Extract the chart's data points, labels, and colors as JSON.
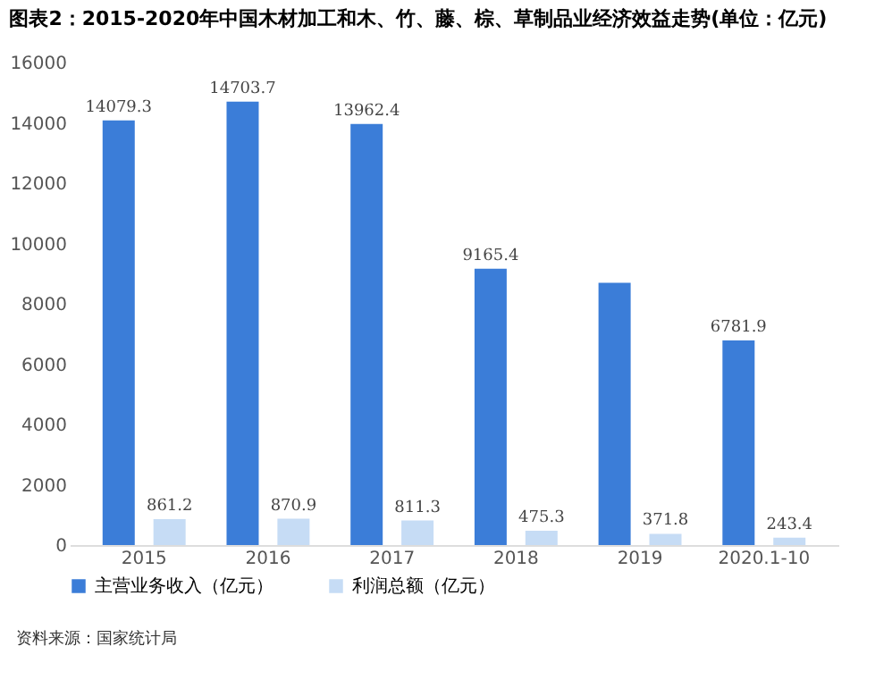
{
  "chart_data": {
    "type": "bar",
    "title": "图表2：2015-2020年中国木材加工和木、竹、藤、棕、草制品业经济效益走势(单位：亿元)",
    "categories": [
      "2015",
      "2016",
      "2017",
      "2018",
      "2019",
      "2020.1-10"
    ],
    "series": [
      {
        "name": "主营业务收入（亿元）",
        "color": "#3b7dd8",
        "values": [
          14079.3,
          14703.7,
          13962.4,
          9165.4,
          8700,
          6781.9
        ],
        "value_labels": [
          "14079.3",
          "14703.7",
          "13962.4",
          "9165.4",
          null,
          "6781.9"
        ]
      },
      {
        "name": "利润总额（亿元）",
        "color": "#c6dcf5",
        "values": [
          861.2,
          870.9,
          811.3,
          475.3,
          371.8,
          243.4
        ],
        "value_labels": [
          "861.2",
          "870.9",
          "811.3",
          "475.3",
          "371.8",
          "243.4"
        ]
      }
    ],
    "ylim": [
      0,
      16000
    ],
    "yticks": [
      0,
      2000,
      4000,
      6000,
      8000,
      10000,
      12000,
      14000,
      16000
    ],
    "grid": false,
    "legend": "bottom",
    "annotations": [
      "资料来源：国家统计局"
    ]
  }
}
